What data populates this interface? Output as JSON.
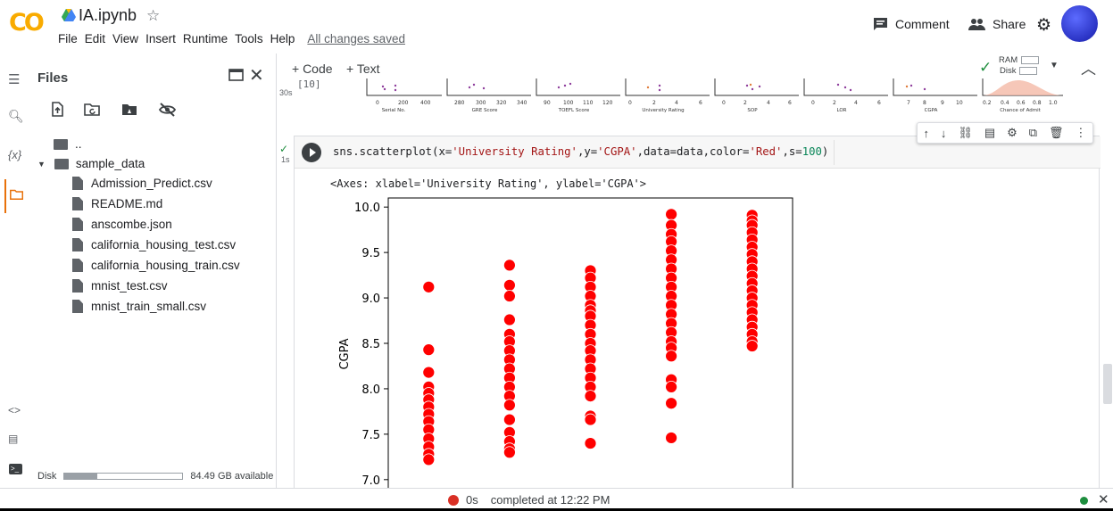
{
  "header": {
    "logo": "CO",
    "title": "IA.ipynb",
    "star": "☆",
    "menu": [
      "File",
      "Edit",
      "View",
      "Insert",
      "Runtime",
      "Tools",
      "Help"
    ],
    "save_status": "All changes saved",
    "comment_label": "Comment",
    "share_label": "Share"
  },
  "sidebar": {
    "title": "Files",
    "parent_dir": "..",
    "folder": "sample_data",
    "files": [
      "Admission_Predict.csv",
      "README.md",
      "anscombe.json",
      "california_housing_test.csv",
      "california_housing_train.csv",
      "mnist_test.csv",
      "mnist_train_small.csv"
    ],
    "disk_label": "Disk",
    "disk_available": "84.49 GB available",
    "disk_used_fraction": 0.28
  },
  "toolbar": {
    "add_code": "+ Code",
    "add_text": "+ Text",
    "ram_label": "RAM",
    "disk_label": "Disk"
  },
  "prev_cell": {
    "exec_count": "[10]",
    "runtime": "30s",
    "axis_labels": [
      "Serial No.",
      "GRE Score",
      "TOEFL Score",
      "University Rating",
      "SOP",
      "LOR",
      "CGPA",
      "Chance of Admit"
    ]
  },
  "cell": {
    "runtime": "1s",
    "code_prefix": "sns.scatterplot(x=",
    "code_x": "'University Rating'",
    "code_mid1": ",y=",
    "code_y": "'CGPA'",
    "code_mid2": ",data=data,color=",
    "code_color": "'Red'",
    "code_mid3": ",s=",
    "code_s": "100",
    "code_end": ")",
    "output_text": "<Axes: xlabel='University Rating', ylabel='CGPA'>"
  },
  "chart_data": {
    "type": "scatter",
    "ylabel": "CGPA",
    "ylim": [
      6.9,
      10.1
    ],
    "yticks": [
      "10.0",
      "9.5",
      "9.0",
      "8.5",
      "8.0",
      "7.5",
      "7.0"
    ],
    "marker_color": "#ff0000",
    "series": [
      {
        "x": 1,
        "values": [
          9.12,
          8.43,
          8.18,
          8.02,
          7.95,
          7.88,
          7.8,
          7.72,
          7.64,
          7.55,
          7.45,
          7.36,
          7.28,
          7.22
        ]
      },
      {
        "x": 2,
        "values": [
          9.36,
          9.14,
          9.02,
          8.76,
          8.6,
          8.52,
          8.42,
          8.32,
          8.22,
          8.12,
          8.02,
          7.92,
          7.82,
          7.66,
          7.52,
          7.42,
          7.34,
          7.3
        ]
      },
      {
        "x": 3,
        "values": [
          9.3,
          9.22,
          9.12,
          9.02,
          8.92,
          8.86,
          8.8,
          8.7,
          8.6,
          8.5,
          8.42,
          8.32,
          8.22,
          8.12,
          8.02,
          7.92,
          7.7,
          7.66,
          7.4
        ]
      },
      {
        "x": 4,
        "values": [
          9.92,
          9.8,
          9.7,
          9.62,
          9.52,
          9.42,
          9.32,
          9.22,
          9.12,
          9.02,
          8.92,
          8.82,
          8.72,
          8.62,
          8.52,
          8.45,
          8.36,
          8.1,
          8.02,
          7.84,
          7.46
        ]
      },
      {
        "x": 5,
        "values": [
          9.91,
          9.85,
          9.8,
          9.72,
          9.64,
          9.56,
          9.48,
          9.4,
          9.32,
          9.24,
          9.16,
          9.08,
          9.0,
          8.92,
          8.84,
          8.76,
          8.68,
          8.6,
          8.52,
          8.47
        ]
      }
    ]
  },
  "status": {
    "elapsed": "0s",
    "message": "completed at 12:22 PM"
  }
}
